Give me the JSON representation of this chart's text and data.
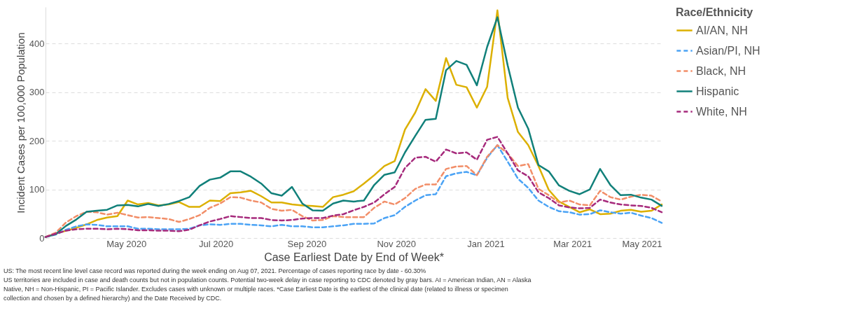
{
  "chart_data": {
    "type": "line",
    "xlabel": "Case Earliest Date by End of Week*",
    "ylabel": "Incident Cases per 100,000 Population",
    "legend_title": "Race/Ethnicity",
    "legend": "right",
    "grid": "y",
    "x": [
      "2020-03-07",
      "2020-03-14",
      "2020-03-21",
      "2020-03-28",
      "2020-04-04",
      "2020-04-11",
      "2020-04-18",
      "2020-04-25",
      "2020-05-02",
      "2020-05-09",
      "2020-05-16",
      "2020-05-23",
      "2020-05-30",
      "2020-06-06",
      "2020-06-13",
      "2020-06-20",
      "2020-06-27",
      "2020-07-04",
      "2020-07-11",
      "2020-07-18",
      "2020-07-25",
      "2020-08-01",
      "2020-08-08",
      "2020-08-15",
      "2020-08-22",
      "2020-08-29",
      "2020-09-05",
      "2020-09-12",
      "2020-09-19",
      "2020-09-26",
      "2020-10-03",
      "2020-10-10",
      "2020-10-17",
      "2020-10-24",
      "2020-10-31",
      "2020-11-07",
      "2020-11-14",
      "2020-11-21",
      "2020-11-28",
      "2020-12-05",
      "2020-12-12",
      "2020-12-19",
      "2020-12-26",
      "2021-01-02",
      "2021-01-09",
      "2021-01-16",
      "2021-01-23",
      "2021-01-30",
      "2021-02-06",
      "2021-02-13",
      "2021-02-20",
      "2021-02-27",
      "2021-03-06",
      "2021-03-13",
      "2021-03-20",
      "2021-03-27",
      "2021-04-03",
      "2021-04-10",
      "2021-04-17",
      "2021-04-24",
      "2021-05-01"
    ],
    "xlim": [
      "2020-03-07",
      "2021-05-01"
    ],
    "xticks": [
      {
        "value": "2020-05",
        "label": "May 2020"
      },
      {
        "value": "2020-07",
        "label": "Jul 2020"
      },
      {
        "value": "2020-09",
        "label": "Sep 2020"
      },
      {
        "value": "2020-11",
        "label": "Nov 2020"
      },
      {
        "value": "2021-01",
        "label": "Jan 2021"
      },
      {
        "value": "2021-03",
        "label": "Mar 2021"
      },
      {
        "value": "2021-05",
        "label": "May 2021"
      }
    ],
    "ylim": [
      0,
      475
    ],
    "yticks": [
      0,
      100,
      200,
      300,
      400
    ],
    "series": [
      {
        "name": "AI/AN, NH",
        "color": "#dcb000",
        "line_style": "solid",
        "values": [
          2,
          9,
          15,
          21,
          28,
          37,
          42,
          45,
          77,
          69,
          72,
          67,
          69,
          74,
          64,
          64,
          77,
          76,
          92,
          94,
          97,
          86,
          73,
          73,
          69,
          67,
          66,
          64,
          84,
          89,
          96,
          112,
          129,
          148,
          158,
          223,
          258,
          306,
          282,
          370,
          315,
          310,
          268,
          311,
          468,
          288,
          218,
          191,
          148,
          99,
          75,
          64,
          53,
          59,
          49,
          50,
          56,
          58,
          54,
          56,
          69
        ]
      },
      {
        "name": "Asian/PI, NH",
        "color": "#4ba3f5",
        "line_style": "dashed",
        "values": [
          2,
          7,
          17,
          24,
          28,
          27,
          24,
          24,
          24,
          19,
          19,
          18,
          18,
          18,
          19,
          26,
          28,
          27,
          29,
          29,
          27,
          26,
          24,
          27,
          24,
          24,
          22,
          22,
          24,
          26,
          29,
          29,
          30,
          41,
          47,
          64,
          77,
          88,
          90,
          127,
          133,
          136,
          129,
          165,
          191,
          157,
          122,
          103,
          77,
          64,
          55,
          53,
          48,
          49,
          57,
          53,
          50,
          52,
          46,
          41,
          31
        ]
      },
      {
        "name": "Black, NH",
        "color": "#f28e68",
        "line_style": "dashed",
        "values": [
          2,
          11,
          32,
          45,
          54,
          53,
          48,
          52,
          47,
          42,
          43,
          41,
          39,
          33,
          39,
          47,
          62,
          71,
          84,
          83,
          77,
          73,
          60,
          56,
          58,
          45,
          36,
          37,
          45,
          43,
          43,
          43,
          62,
          75,
          69,
          82,
          101,
          110,
          110,
          142,
          147,
          148,
          129,
          167,
          191,
          174,
          148,
          152,
          101,
          88,
          73,
          77,
          69,
          67,
          97,
          84,
          79,
          85,
          89,
          87,
          75
        ]
      },
      {
        "name": "Hispanic",
        "color": "#11807a",
        "line_style": "solid",
        "values": [
          2,
          8,
          25,
          38,
          54,
          56,
          58,
          67,
          68,
          65,
          70,
          66,
          70,
          76,
          84,
          107,
          120,
          124,
          137,
          137,
          126,
          112,
          92,
          87,
          105,
          71,
          57,
          56,
          71,
          77,
          75,
          77,
          109,
          130,
          135,
          176,
          210,
          243,
          245,
          345,
          364,
          356,
          314,
          393,
          454,
          355,
          268,
          225,
          150,
          137,
          108,
          97,
          90,
          100,
          142,
          109,
          88,
          89,
          83,
          79,
          66
        ]
      },
      {
        "name": "White, NH",
        "color": "#a62a7c",
        "line_style": "dashed",
        "values": [
          2,
          9,
          15,
          18,
          19,
          19,
          18,
          19,
          18,
          16,
          16,
          15,
          15,
          14,
          17,
          26,
          34,
          39,
          45,
          43,
          41,
          41,
          37,
          36,
          37,
          40,
          41,
          41,
          46,
          49,
          57,
          64,
          73,
          90,
          105,
          144,
          165,
          167,
          157,
          182,
          174,
          176,
          161,
          202,
          208,
          174,
          139,
          127,
          94,
          82,
          67,
          63,
          61,
          62,
          79,
          73,
          69,
          67,
          66,
          62,
          53
        ]
      }
    ],
    "annotations": [
      "US: The most recent line level case record was reported during the week ending on Aug 07, 2021. Percentage of cases reporting race by date - 60.30%",
      "US territories are included in case and death counts but not in population counts. Potential two-week delay in case reporting to CDC denoted by gray bars. AI = American Indian, AN = Alaska Native, NH = Non-Hispanic, PI = Pacific Islander. Excludes cases with unknown or multiple races. *Case Earliest Date is the earliest of the clinical date (related to illness or specimen collection and chosen by a defined hierarchy) and the Date Received by CDC."
    ]
  }
}
